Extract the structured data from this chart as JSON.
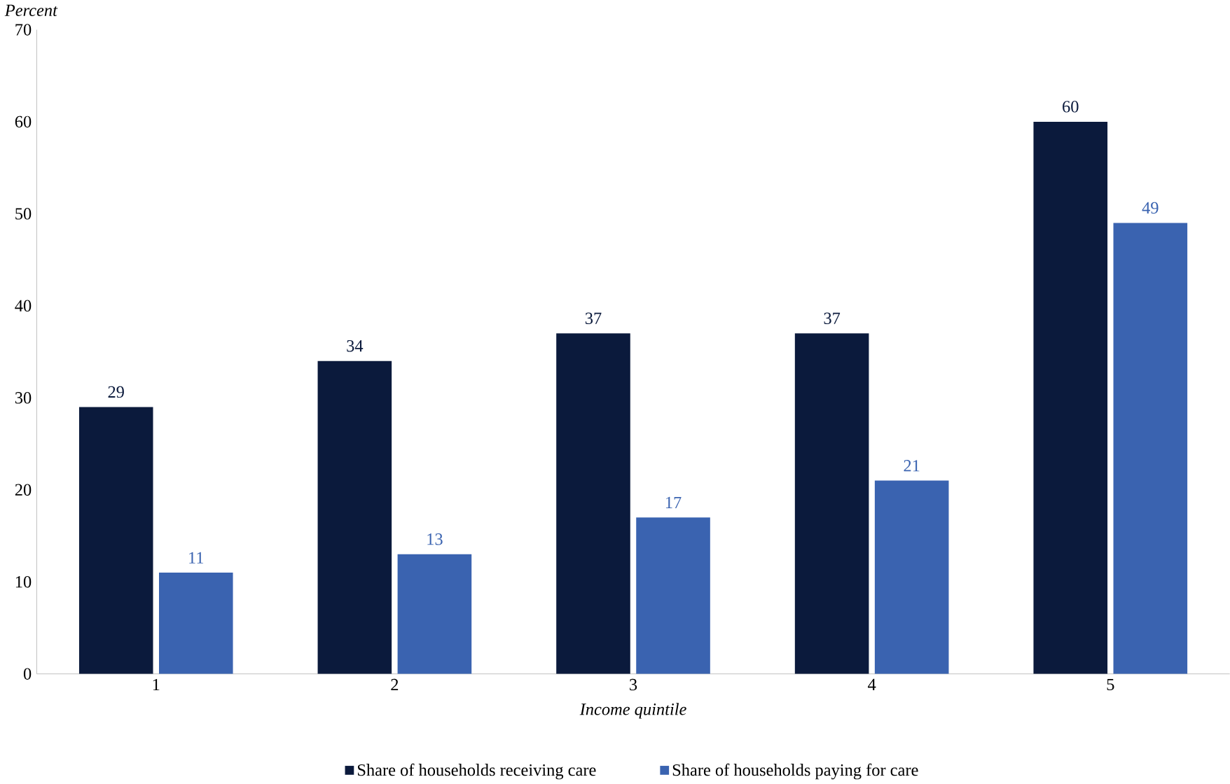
{
  "chart_data": {
    "type": "bar",
    "ylabel": "Percent",
    "xlabel": "Income quintile",
    "categories": [
      "1",
      "2",
      "3",
      "4",
      "5"
    ],
    "series": [
      {
        "name": "Share of households receiving care",
        "color": "#0b1a3c",
        "values": [
          29,
          34,
          37,
          37,
          60
        ]
      },
      {
        "name": "Share of households paying for care",
        "color": "#3a63b0",
        "values": [
          11,
          13,
          17,
          21,
          49
        ]
      }
    ],
    "ylim": [
      0,
      70
    ],
    "yticks": [
      0,
      10,
      20,
      30,
      40,
      50,
      60,
      70
    ],
    "data_labels": true,
    "legend": "bottom"
  }
}
